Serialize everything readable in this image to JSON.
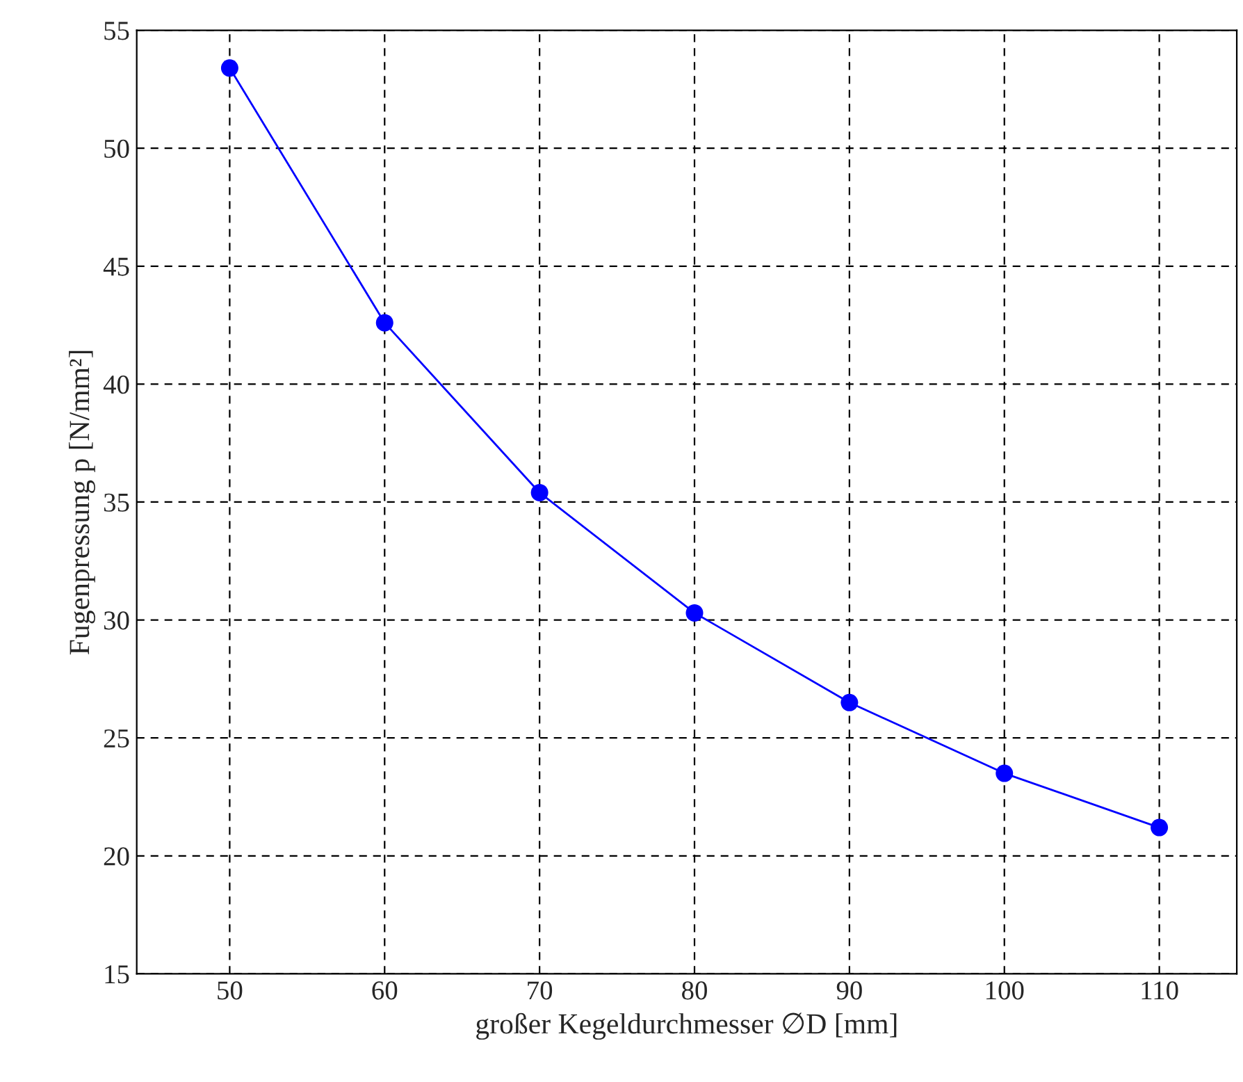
{
  "chart_data": {
    "type": "line",
    "xlabel": "großer Kegeldurchmesser ∅D [mm]",
    "ylabel": "Fugenpressung p [N/mm²]",
    "x": [
      50,
      60,
      70,
      80,
      90,
      100,
      110
    ],
    "series": [
      {
        "color": "#0000ff",
        "values": [
          53.4,
          42.6,
          35.4,
          30.3,
          26.5,
          23.5,
          21.2
        ]
      }
    ],
    "xlim": [
      44,
      115
    ],
    "ylim": [
      15,
      55
    ],
    "xticks": [
      50,
      60,
      70,
      80,
      90,
      100,
      110
    ],
    "yticks": [
      15,
      20,
      25,
      30,
      35,
      40,
      45,
      50,
      55
    ],
    "grid": true,
    "marker": "circle",
    "line_style": "solid",
    "legend": false
  }
}
